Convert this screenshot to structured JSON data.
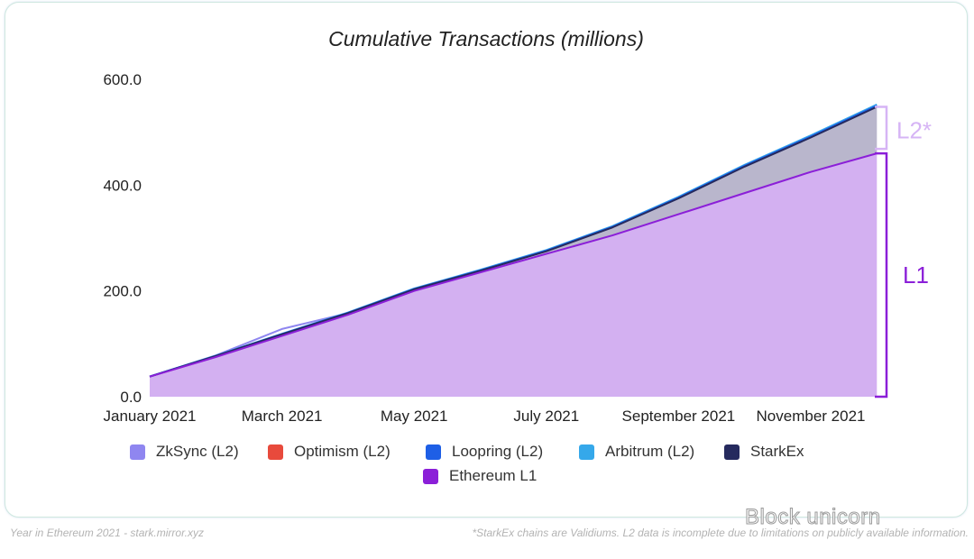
{
  "chart_data": {
    "type": "area",
    "title": "Cumulative Transactions (millions)",
    "ylim": [
      0,
      600
    ],
    "yticks": [
      "0.0",
      "200.0",
      "400.0",
      "600.0"
    ],
    "yticks_values": [
      0,
      200,
      400,
      600
    ],
    "xticks": [
      "January 2021",
      "March 2021",
      "May 2021",
      "July 2021",
      "September 2021",
      "November 2021"
    ],
    "xticks_months": [
      0,
      2,
      4,
      6,
      8,
      10
    ],
    "x_months": [
      0,
      1,
      2,
      3,
      4,
      5,
      6,
      7,
      8,
      9,
      10,
      11
    ],
    "series": [
      {
        "name": "ZkSync (L2)",
        "color": "#8f86f0"
      },
      {
        "name": "Optimism (L2)",
        "color": "#e84a3c"
      },
      {
        "name": "Loopring (L2)",
        "color": "#1e5fe6"
      },
      {
        "name": "Arbitrum (L2)",
        "color": "#35a8ea"
      },
      {
        "name": "StarkEx",
        "color": "#252a5e"
      },
      {
        "name": "Ethereum L1",
        "color": "#8b1fd8"
      }
    ],
    "ethereum_l1": [
      38,
      75,
      115,
      155,
      200,
      235,
      270,
      305,
      345,
      385,
      425,
      460
    ],
    "l2_top": [
      38,
      77,
      118,
      158,
      203,
      238,
      275,
      320,
      375,
      435,
      490,
      548
    ],
    "zksync_bump": [
      38,
      78,
      128,
      158,
      203
    ],
    "annotations": [
      {
        "label": "L2*",
        "color": "#d6b4f5"
      },
      {
        "label": "L1",
        "color": "#8b1fd8"
      }
    ]
  },
  "footer": {
    "source": "Year in Ethereum 2021 - stark.mirror.xyz",
    "note": "*StarkEx chains are Validiums. L2 data is incomplete due to limitations on publicly available information.",
    "watermark": "Block unicorn"
  }
}
